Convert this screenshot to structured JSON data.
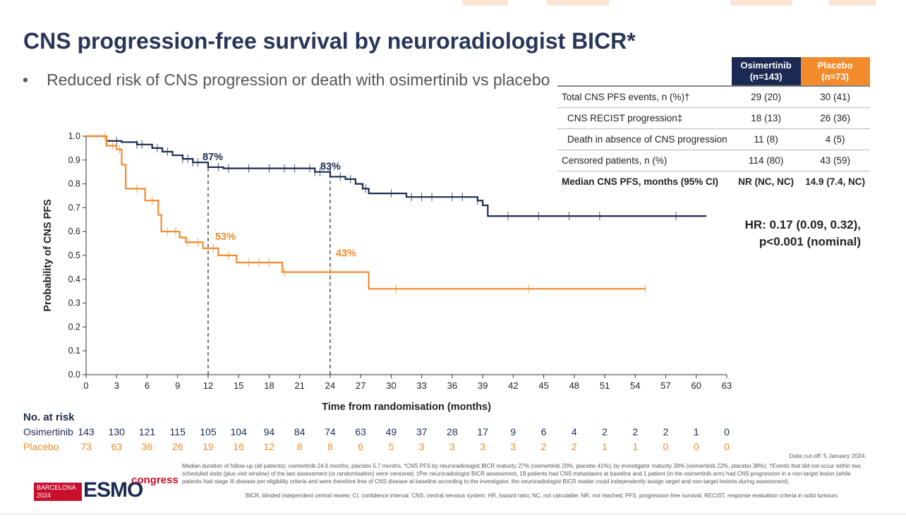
{
  "slide": {
    "title": "CNS progression-free survival by neuroradiologist BICR*",
    "bullet_marker": "•",
    "bullet": "Reduced risk of CNS progression or death with osimertinib vs placebo"
  },
  "colors": {
    "osimertinib": "#1b2a52",
    "placebo": "#f28b2b"
  },
  "table": {
    "headers": [
      {
        "name": "Osimertinib",
        "n": "(n=143)"
      },
      {
        "name": "Placebo",
        "n": "(n=73)"
      }
    ],
    "rows": [
      {
        "label": "Total CNS PFS events, n (%)†",
        "osi": "29 (20)",
        "pla": "30 (41)"
      },
      {
        "label": "CNS RECIST progression‡",
        "osi": "18 (13)",
        "pla": "26 (36)"
      },
      {
        "label": "Death in absence of CNS progression",
        "osi": "11 (8)",
        "pla": "4 (5)"
      },
      {
        "label": "Censored patients, n (%)",
        "osi": "114 (80)",
        "pla": "43 (59)"
      },
      {
        "label": "Median CNS PFS, months (95% CI)",
        "osi": "NR (NC, NC)",
        "pla": "14.9 (7.4, NC)"
      }
    ]
  },
  "hr": {
    "line1": "HR: 0.17 (0.09, 0.32),",
    "line2": "p<0.001 (nominal)"
  },
  "chart_data": {
    "type": "line",
    "ylabel": "Probability of CNS PFS",
    "xlabel": "Time from randomisation (months)",
    "xlim": [
      0,
      63
    ],
    "ylim": [
      0,
      1
    ],
    "xticks": [
      "0",
      "3",
      "6",
      "9",
      "12",
      "15",
      "18",
      "21",
      "24",
      "27",
      "30",
      "33",
      "36",
      "39",
      "42",
      "45",
      "48",
      "51",
      "54",
      "57",
      "60",
      "63"
    ],
    "yticks": [
      "0.0",
      "0.1",
      "0.2",
      "0.3",
      "0.4",
      "0.5",
      "0.6",
      "0.7",
      "0.8",
      "0.9",
      "1.0"
    ],
    "series": [
      {
        "name": "Osimertinib",
        "color": "#1b2a52",
        "steps": [
          [
            0,
            1.0
          ],
          [
            2,
            0.98
          ],
          [
            3.5,
            0.975
          ],
          [
            5,
            0.965
          ],
          [
            6.5,
            0.95
          ],
          [
            7.5,
            0.935
          ],
          [
            8.5,
            0.92
          ],
          [
            9.5,
            0.905
          ],
          [
            10.5,
            0.89
          ],
          [
            12,
            0.87
          ],
          [
            13.5,
            0.865
          ],
          [
            22.5,
            0.85
          ],
          [
            24,
            0.83
          ],
          [
            25.5,
            0.82
          ],
          [
            26.5,
            0.8
          ],
          [
            27.2,
            0.78
          ],
          [
            27.8,
            0.76
          ],
          [
            31.5,
            0.745
          ],
          [
            38.5,
            0.73
          ],
          [
            39,
            0.71
          ],
          [
            39.5,
            0.665
          ],
          [
            61,
            0.665
          ]
        ],
        "censors": [
          2,
          3,
          5,
          5.5,
          7,
          8,
          9.5,
          10,
          10.5,
          11,
          13,
          14,
          16,
          18,
          19.5,
          20.5,
          22,
          22.5,
          23,
          25,
          26,
          27.5,
          30,
          32,
          33,
          34,
          36,
          37,
          38.5,
          41.5,
          44.5,
          47.5,
          50.5,
          58
        ]
      },
      {
        "name": "Placebo",
        "color": "#f28b2b",
        "steps": [
          [
            0,
            1.0
          ],
          [
            2,
            0.96
          ],
          [
            3,
            0.945
          ],
          [
            3.5,
            0.88
          ],
          [
            3.9,
            0.78
          ],
          [
            5.8,
            0.73
          ],
          [
            7.1,
            0.67
          ],
          [
            7.4,
            0.6
          ],
          [
            9.2,
            0.575
          ],
          [
            9.8,
            0.555
          ],
          [
            11.5,
            0.53
          ],
          [
            13,
            0.5
          ],
          [
            14.8,
            0.47
          ],
          [
            19.3,
            0.43
          ],
          [
            27.8,
            0.36
          ],
          [
            55,
            0.36
          ]
        ],
        "censors": [
          1.8,
          2.6,
          3.3,
          5,
          6.5,
          8,
          8.8,
          10,
          11,
          12.5,
          14,
          16,
          17,
          18,
          19.5,
          24,
          30.5,
          43.5,
          55
        ]
      }
    ],
    "annotations": [
      {
        "x": 12,
        "y": 0.87,
        "label": "87%",
        "series": "Osimertinib"
      },
      {
        "x": 24,
        "y": 0.83,
        "label": "83%",
        "series": "Osimertinib"
      },
      {
        "x": 12,
        "y": 0.53,
        "label": "53%",
        "series": "Placebo"
      },
      {
        "x": 24,
        "y": 0.43,
        "label": "43%",
        "series": "Placebo"
      }
    ],
    "reference_lines_x": [
      12,
      24
    ]
  },
  "risk_table": {
    "title": "No. at risk",
    "rows": [
      {
        "label": "Osimertinib",
        "values": [
          "143",
          "130",
          "121",
          "115",
          "105",
          "104",
          "94",
          "84",
          "74",
          "63",
          "49",
          "37",
          "28",
          "17",
          "9",
          "6",
          "4",
          "2",
          "2",
          "2",
          "1",
          "0"
        ]
      },
      {
        "label": "Placebo",
        "values": [
          "73",
          "63",
          "36",
          "26",
          "19",
          "16",
          "12",
          "8",
          "8",
          "6",
          "5",
          "3",
          "3",
          "3",
          "3",
          "2",
          "2",
          "1",
          "1",
          "0",
          "0",
          "0"
        ]
      }
    ]
  },
  "footer": {
    "cutoff": "Data cut-off: 5 January 2024.",
    "notes": "Median duration of follow-up (all patients): osimertinib 24.6 months; placebo 5.7 months. *CNS PFS by neuroradiologist BICR maturity 27% (osimertinib 20%, placebo 41%); by investigator maturity 28% (osimertinib 22%, placebo 38%); †Events that did not occur within two scheduled visits (plus visit window) of the last assessment (or randomisation) were censored; ‡Per neuroradiologist BICR assessment, 19 patients had CNS metastases at baseline and 1 patient (in the osimertinib arm) had CNS progression in a non-target lesion (while patients had stage III disease per eligibility criteria and were therefore free of CNS disease at baseline according to the investigator, the neuroradiologist BICR reader could independently assign target and non-target lesions during assessment).",
    "abbreviations": "BICR, blinded independent central review; CI, confidence interval; CNS, central nervous system; HR, hazard ratio; NC, not calculable; NR, not reached; PFS, progression-free survival; RECIST, response evaluation criteria in solid tumours"
  },
  "logo": {
    "city": "BARCELONA",
    "year": "2024",
    "brand": "ESMO",
    "suffix": "congress"
  }
}
